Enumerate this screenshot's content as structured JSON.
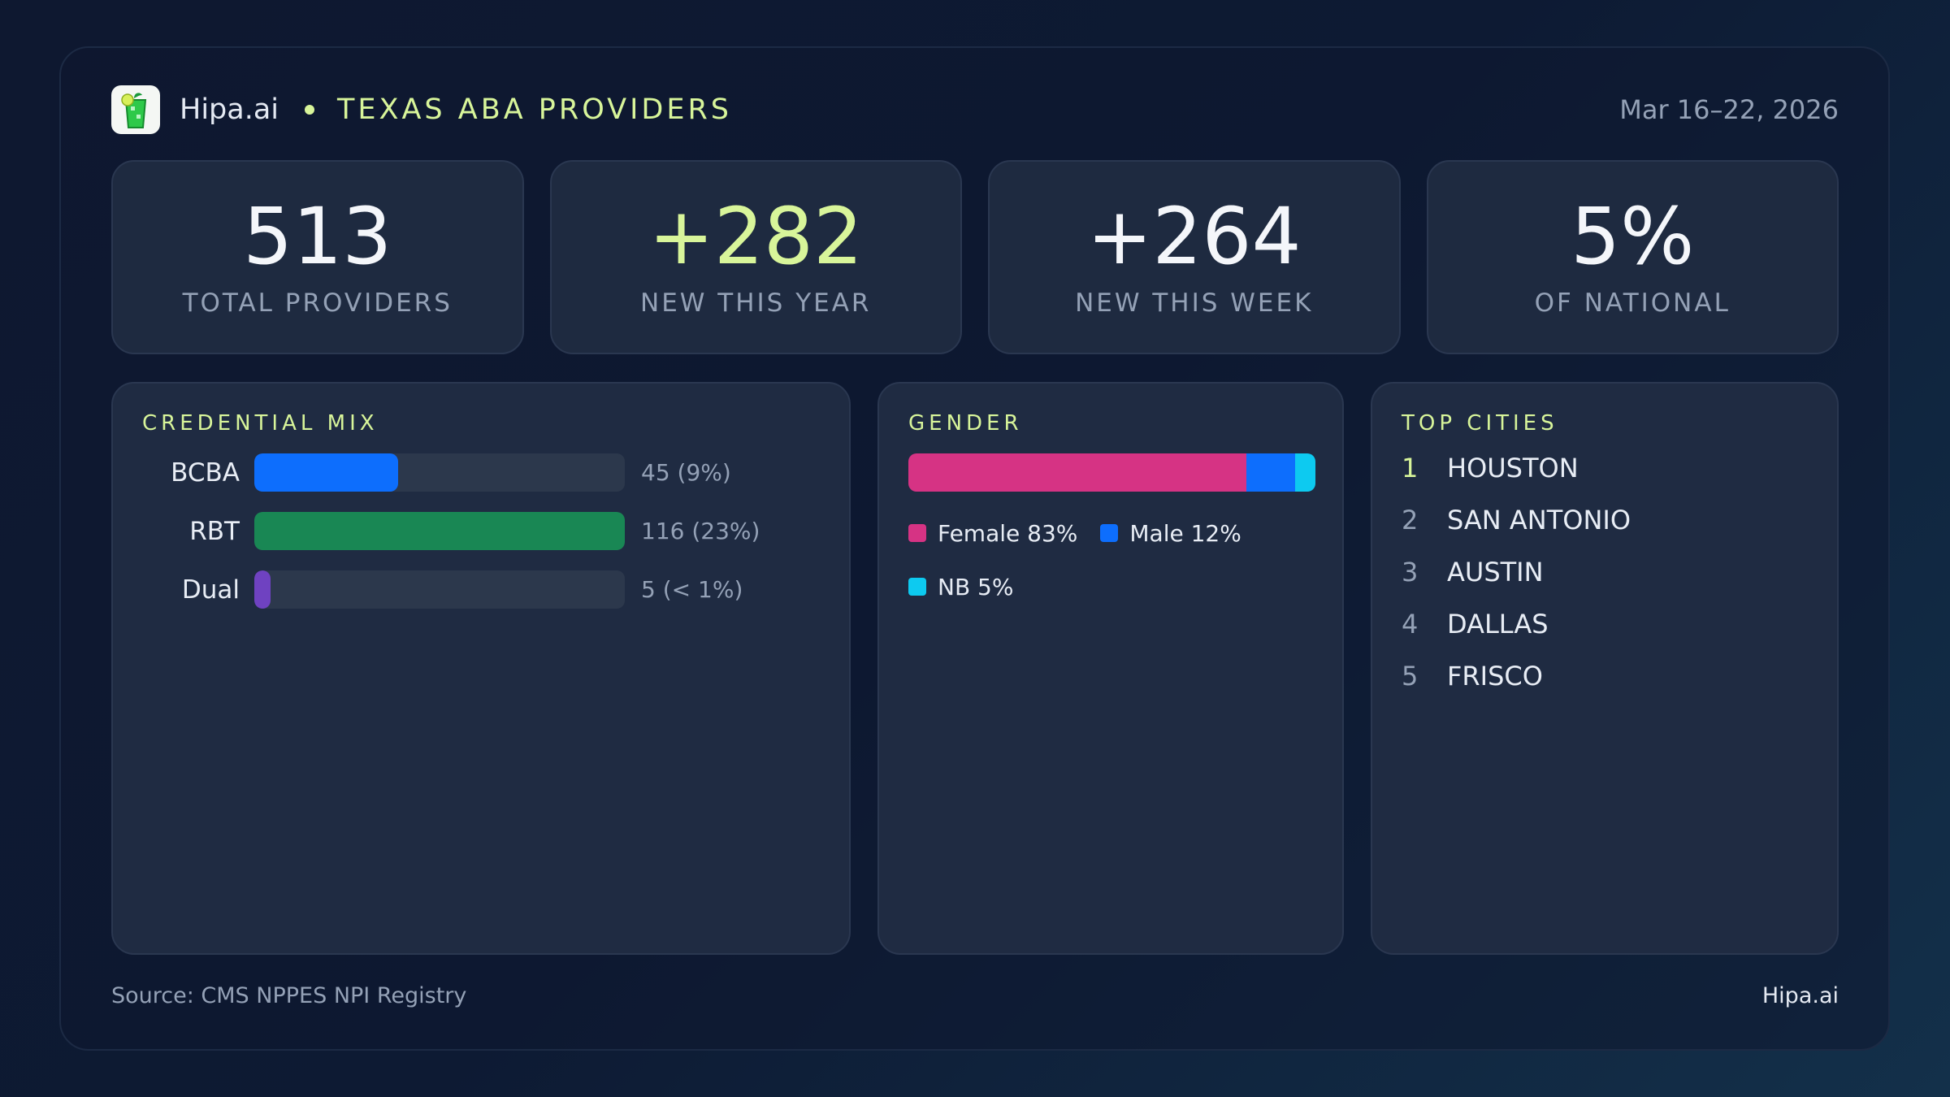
{
  "header": {
    "brand": "Hipa.ai",
    "title": "TEXAS ABA PROVIDERS",
    "date_range": "Mar 16–22, 2026",
    "logo_icon": "mojito-glass-icon"
  },
  "kpis": [
    {
      "value": "513",
      "label": "TOTAL PROVIDERS",
      "accent": false
    },
    {
      "value": "+282",
      "label": "NEW THIS YEAR",
      "accent": true
    },
    {
      "value": "+264",
      "label": "NEW THIS WEEK",
      "accent": false
    },
    {
      "value": "5%",
      "label": "OF NATIONAL",
      "accent": false
    }
  ],
  "credential_mix": {
    "title": "CREDENTIAL MIX",
    "items": [
      {
        "label": "BCBA",
        "count": 45,
        "count_text": "45",
        "pct_text": "(9%)",
        "color": "#0d6efd"
      },
      {
        "label": "RBT",
        "count": 116,
        "count_text": "116",
        "pct_text": "(23%)",
        "color": "#198754"
      },
      {
        "label": "Dual",
        "count": 5,
        "count_text": "5",
        "pct_text": "(< 1%)",
        "color": "#6f42c1"
      }
    ]
  },
  "gender": {
    "title": "GENDER",
    "segments": [
      {
        "label": "Female 83%",
        "pct": 83,
        "color": "#d63384"
      },
      {
        "label": "Male 12%",
        "pct": 12,
        "color": "#0d6efd"
      },
      {
        "label": "NB 5%",
        "pct": 5,
        "color": "#0dcaf0"
      }
    ]
  },
  "top_cities": {
    "title": "TOP CITIES",
    "items": [
      {
        "rank": "1",
        "name": "HOUSTON"
      },
      {
        "rank": "2",
        "name": "SAN ANTONIO"
      },
      {
        "rank": "3",
        "name": "AUSTIN"
      },
      {
        "rank": "4",
        "name": "DALLAS"
      },
      {
        "rank": "5",
        "name": "FRISCO"
      }
    ]
  },
  "footer": {
    "source": "Source: CMS NPPES NPI Registry",
    "brand": "Hipa.ai"
  }
}
